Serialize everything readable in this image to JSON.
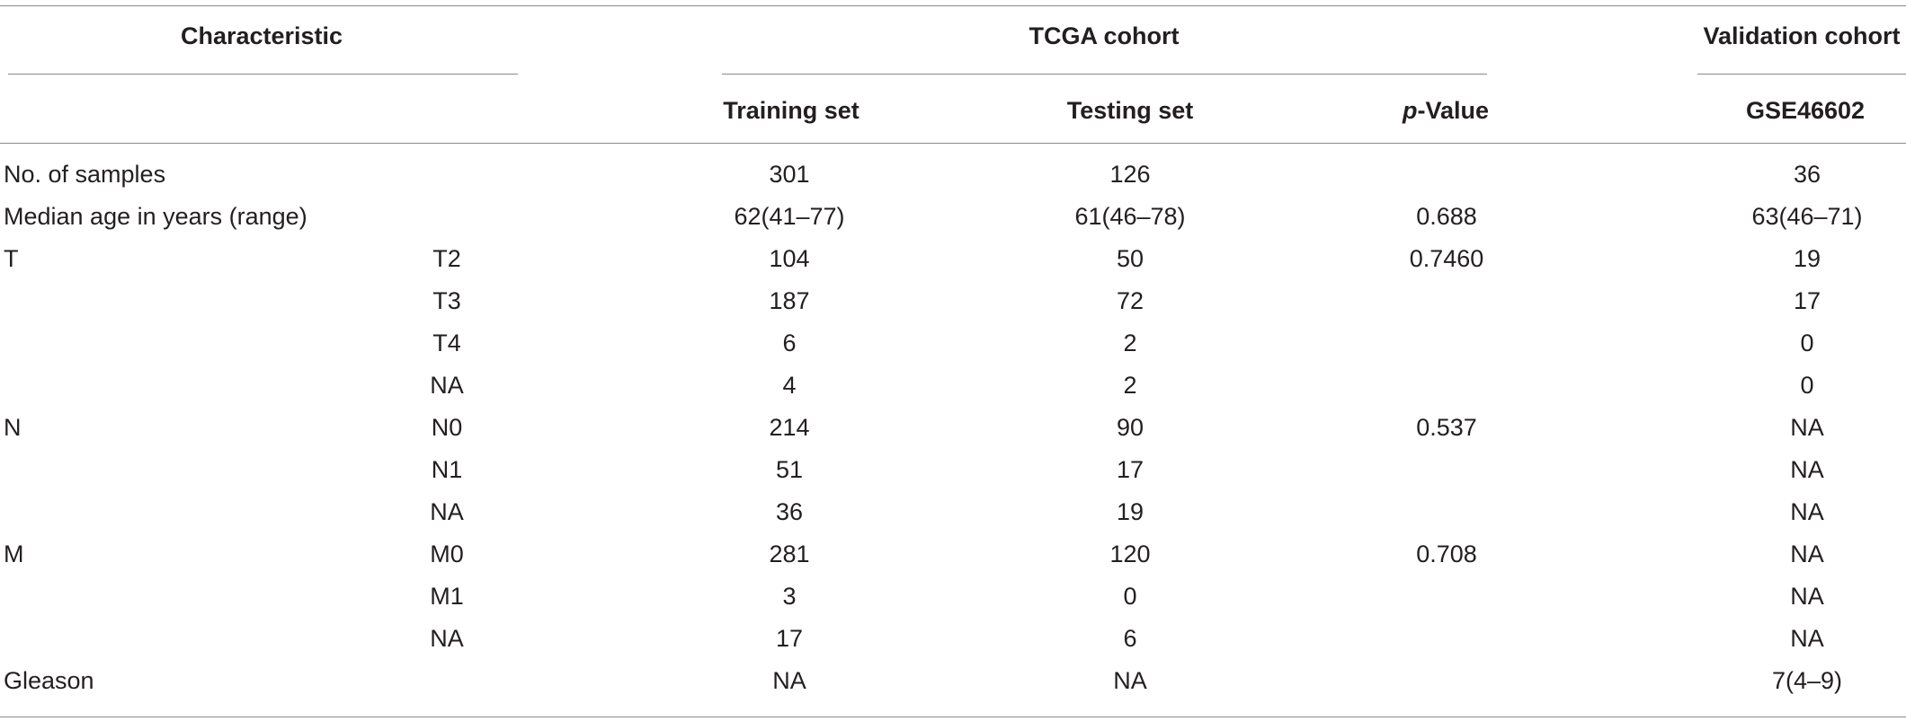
{
  "header": {
    "characteristic": "Characteristic",
    "tcga_cohort": "TCGA cohort",
    "validation_cohort": "Validation cohort",
    "training_set": "Training set",
    "testing_set": "Testing set",
    "p_value_italic": "p",
    "p_value_rest": "-Value",
    "gse": "GSE46602"
  },
  "rows": [
    {
      "label": "No. of samples",
      "sub": "",
      "training": "301",
      "testing": "126",
      "p": "",
      "validation": "36"
    },
    {
      "label": "Median age in years (range)",
      "sub": "",
      "training": "62(41–77)",
      "testing": "61(46–78)",
      "p": "0.688",
      "validation": "63(46–71)"
    },
    {
      "label": "T",
      "sub": "T2",
      "training": "104",
      "testing": "50",
      "p": "0.7460",
      "validation": "19"
    },
    {
      "label": "",
      "sub": "T3",
      "training": "187",
      "testing": "72",
      "p": "",
      "validation": "17"
    },
    {
      "label": "",
      "sub": "T4",
      "training": "6",
      "testing": "2",
      "p": "",
      "validation": "0"
    },
    {
      "label": "",
      "sub": "NA",
      "training": "4",
      "testing": "2",
      "p": "",
      "validation": "0"
    },
    {
      "label": "N",
      "sub": "N0",
      "training": "214",
      "testing": "90",
      "p": "0.537",
      "validation": "NA"
    },
    {
      "label": "",
      "sub": "N1",
      "training": "51",
      "testing": "17",
      "p": "",
      "validation": "NA"
    },
    {
      "label": "",
      "sub": "NA",
      "training": "36",
      "testing": "19",
      "p": "",
      "validation": "NA"
    },
    {
      "label": "M",
      "sub": "M0",
      "training": "281",
      "testing": "120",
      "p": "0.708",
      "validation": "NA"
    },
    {
      "label": "",
      "sub": "M1",
      "training": "3",
      "testing": "0",
      "p": "",
      "validation": "NA"
    },
    {
      "label": "",
      "sub": "NA",
      "training": "17",
      "testing": "6",
      "p": "",
      "validation": "NA"
    },
    {
      "label": "Gleason",
      "sub": "",
      "training": "NA",
      "testing": "NA",
      "p": "",
      "validation": "7(4–9)"
    }
  ]
}
